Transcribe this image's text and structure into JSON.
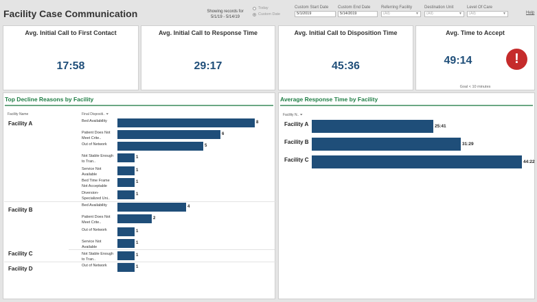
{
  "header": {
    "title": "Facility Case Communication",
    "showing_line1": "Showing records for",
    "showing_line2": "5/1/19 - 5/14/19",
    "radio_today": "Today",
    "radio_custom": "Custom Date",
    "filters": [
      {
        "label": "Custom Start Date",
        "value": "5/1/2019"
      },
      {
        "label": "Custom End Date",
        "value": "5/14/2019"
      },
      {
        "label": "Referring Facility",
        "value": "(All)"
      },
      {
        "label": "Destination Unit",
        "value": "(All)"
      },
      {
        "label": "Level Of Care",
        "value": "(All)"
      }
    ],
    "help": "Help"
  },
  "kpis": [
    {
      "title": "Avg. Initial Call to First Contact",
      "value": "17:58"
    },
    {
      "title": "Avg. Initial Call to Response Time",
      "value": "29:17"
    },
    {
      "title": "Avg. Initial Call to Disposition Time",
      "value": "45:36"
    },
    {
      "title": "Avg. Time to Accept",
      "value": "49:14",
      "goal": "Goal < 10 minutes",
      "alert": "!"
    }
  ],
  "decline_panel": {
    "title": "Top Decline Reasons by Facility",
    "col_facility": "Facility Name",
    "col_disposition": "Final Dispositi..",
    "facilities": [
      "Facility A",
      "Facility B",
      "Facility C",
      "Facility D"
    ],
    "rows": [
      {
        "reason": "Bed Availability",
        "value": 8
      },
      {
        "reason": "Patient Does Not Meet Crite..",
        "value": 6
      },
      {
        "reason": "Out of Network",
        "value": 5
      },
      {
        "reason": "Not Stable Enough to Tran..",
        "value": 1
      },
      {
        "reason": "Service Not Available",
        "value": 1
      },
      {
        "reason": "Bed Time Frame Not Acceptable",
        "value": 1
      },
      {
        "reason": "Diversion- Specialized Uni..",
        "value": 1
      },
      {
        "reason": "Bed Availability",
        "value": 4
      },
      {
        "reason": "Patient Does Not Meet Crite..",
        "value": 2
      },
      {
        "reason": "Out of Network",
        "value": 1
      },
      {
        "reason": "Service Not Available",
        "value": 1
      },
      {
        "reason": "Not Stable Enough to Tran..",
        "value": 1
      },
      {
        "reason": "Out of Network",
        "value": 1
      }
    ]
  },
  "response_panel": {
    "title": "Average Response Time by Facility",
    "col_facility": "Facility N..",
    "rows": [
      {
        "facility": "Facility A",
        "value": "25:41"
      },
      {
        "facility": "Facility B",
        "value": "31:29"
      },
      {
        "facility": "Facility C",
        "value": "44:22"
      }
    ]
  },
  "colors": {
    "bar": "#1f4e79",
    "accent": "#1e7d44",
    "alert": "#c52b2b"
  }
}
